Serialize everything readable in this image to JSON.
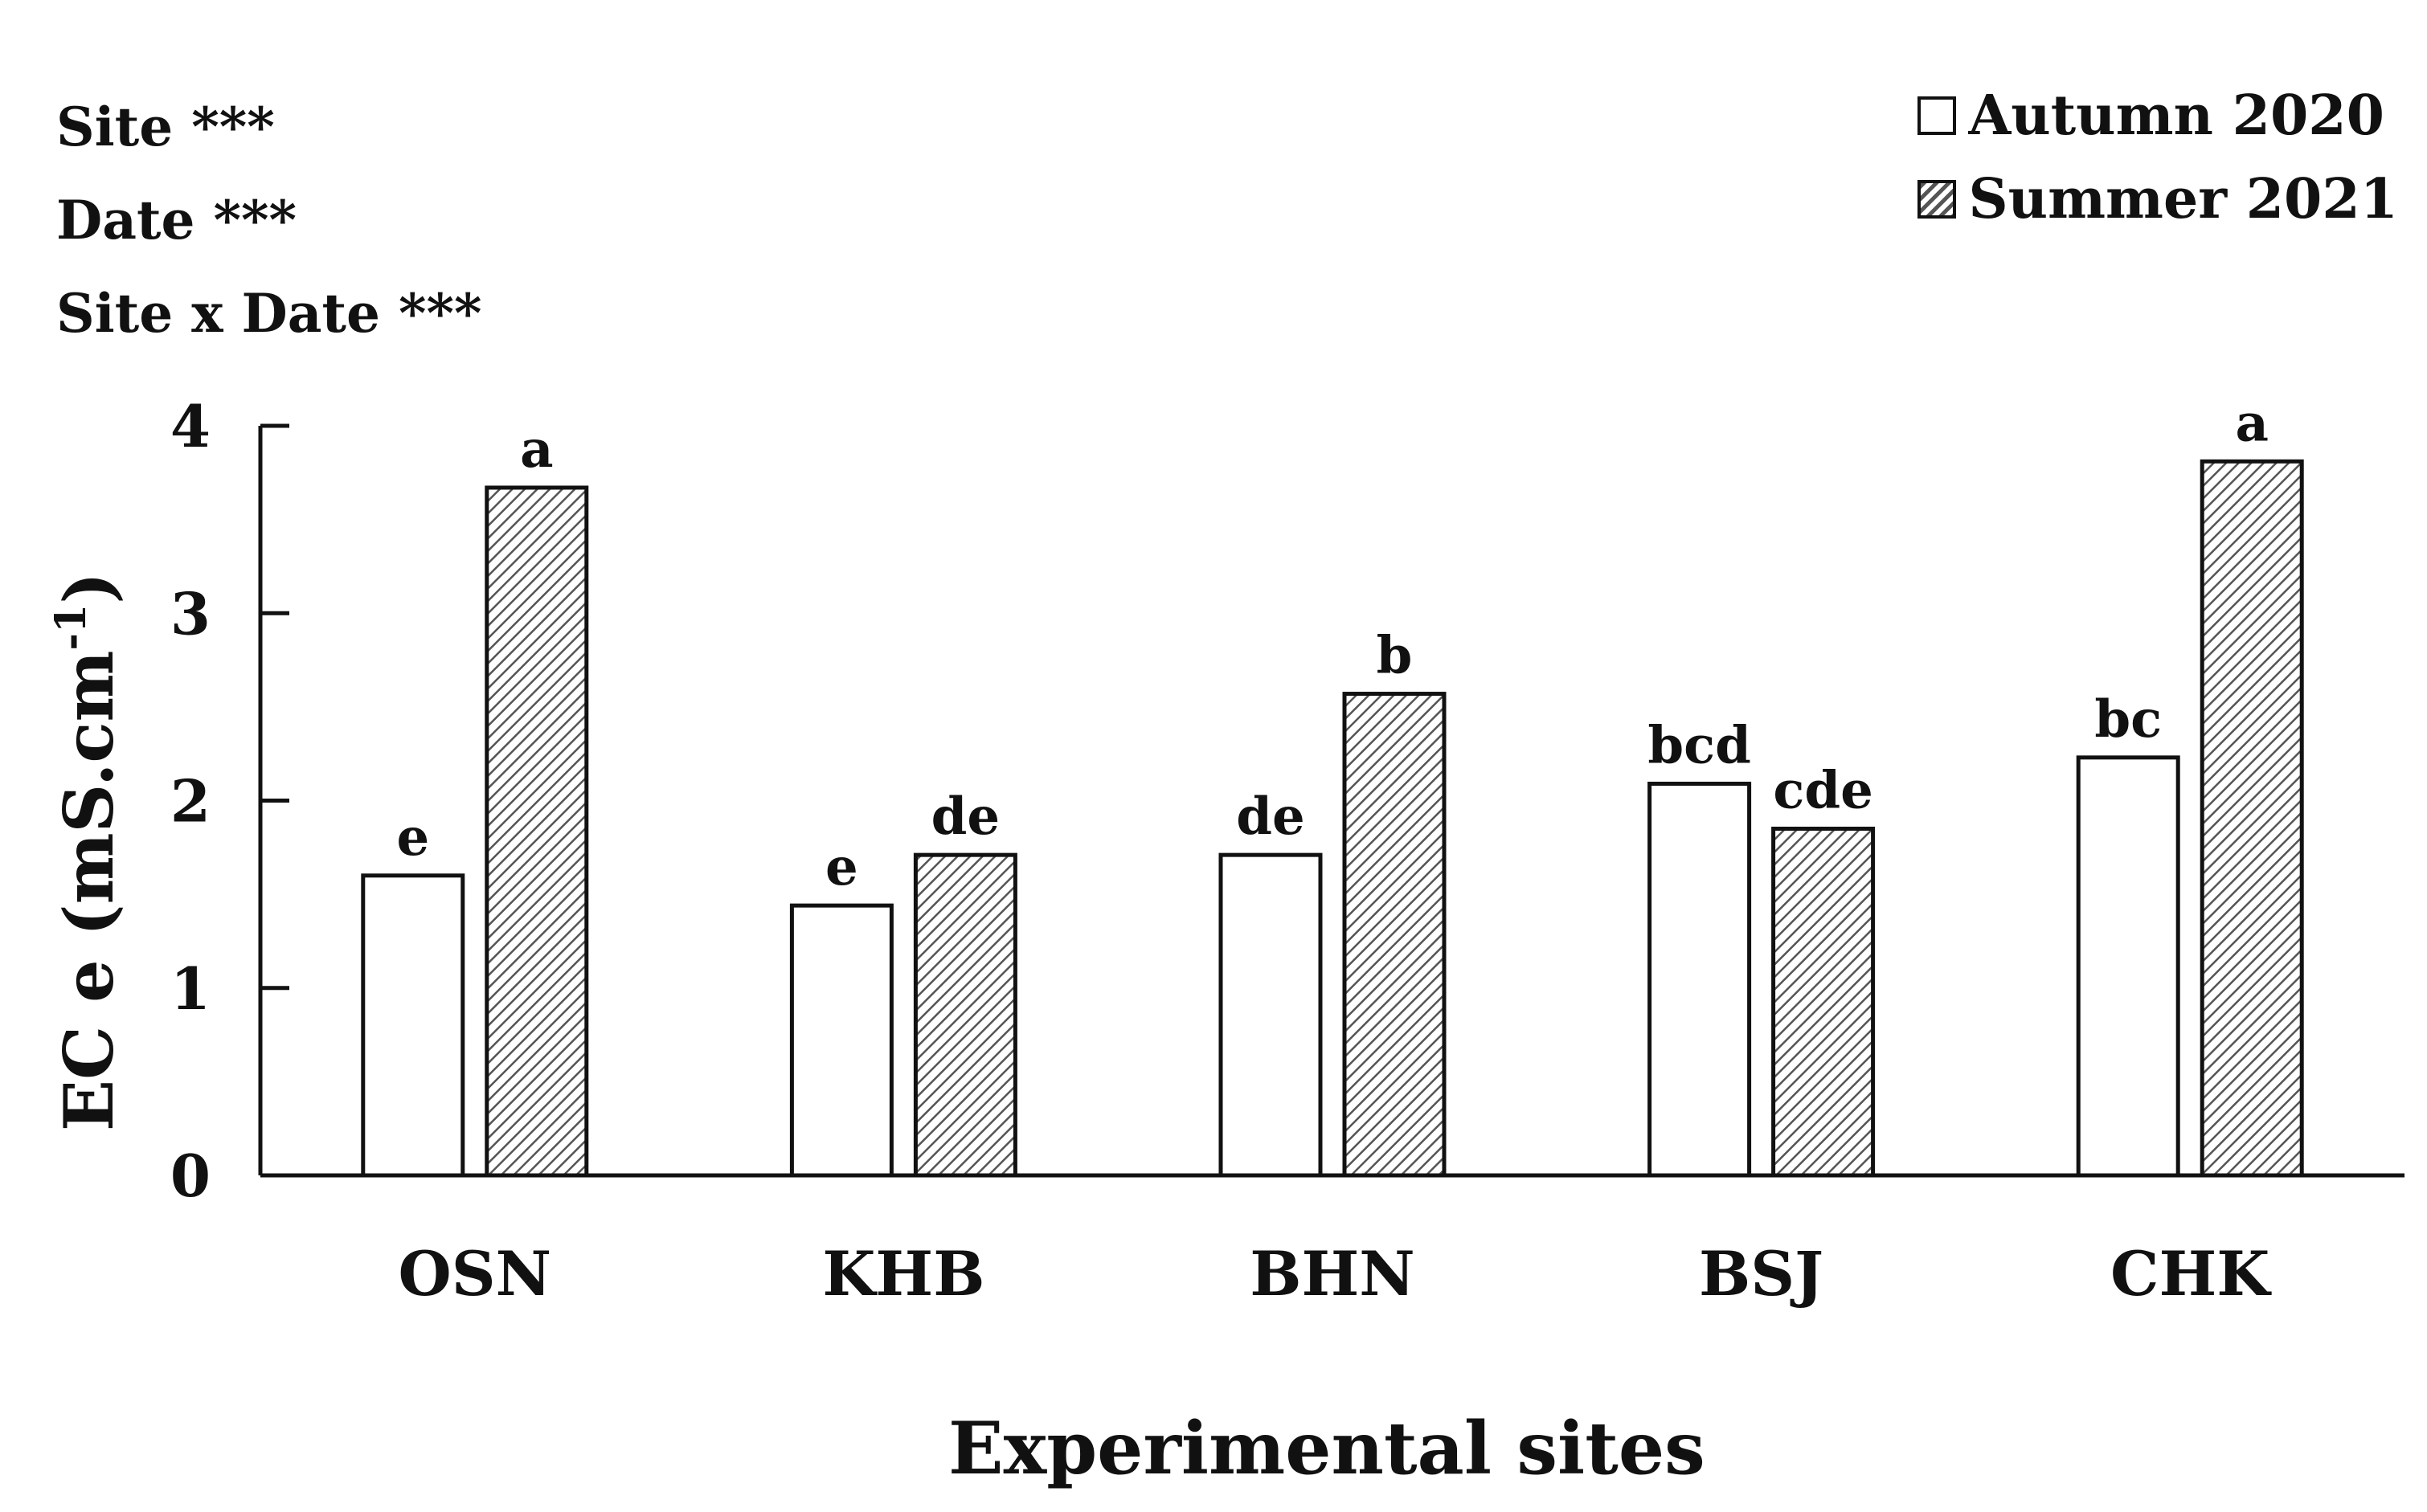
{
  "stats_annotations": [
    "Site ***",
    "Date ***",
    "Site x Date ***"
  ],
  "chart_data": {
    "type": "bar",
    "title": "",
    "xlabel": "Experimental sites",
    "ylabel_main": "EC e (mS.cm",
    "ylabel_sup": "-1",
    "ylabel_close": ")",
    "ylim": [
      0,
      4
    ],
    "yticks": [
      0,
      1,
      2,
      3,
      4
    ],
    "categories": [
      "OSN",
      "KHB",
      "BHN",
      "BSJ",
      "CHK"
    ],
    "series": [
      {
        "name": "Autumn 2020",
        "pattern": "open",
        "values": [
          1.6,
          1.44,
          1.71,
          2.09,
          2.23
        ],
        "letters": [
          "e",
          "e",
          "de",
          "bcd",
          "bc"
        ]
      },
      {
        "name": "Summer 2021",
        "pattern": "hatched",
        "values": [
          3.67,
          1.71,
          2.57,
          1.85,
          3.81
        ],
        "letters": [
          "a",
          "de",
          "b",
          "cde",
          "a"
        ]
      }
    ],
    "legend_position": "top-right",
    "grid": false,
    "colors": {
      "bar_outline": "#111111",
      "open_fill": "#ffffff",
      "hatch": "#555555"
    }
  }
}
